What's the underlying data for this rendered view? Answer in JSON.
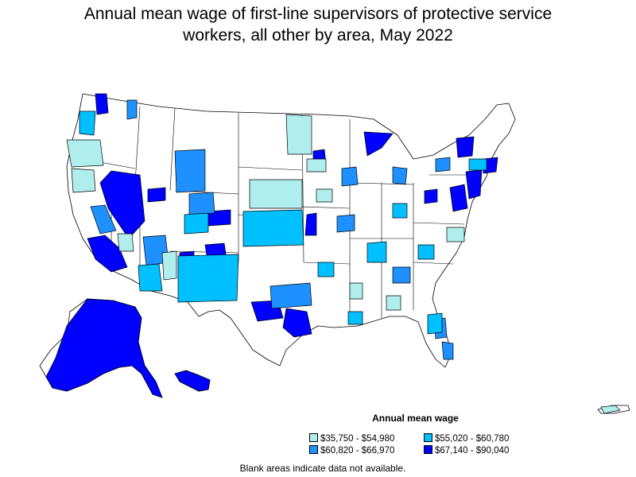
{
  "title": {
    "line1": "Annual mean wage of first-line supervisors of protective service",
    "line2": "workers, all other by area, May 2022"
  },
  "legend": {
    "title": "Annual mean wage",
    "items": [
      {
        "label": "$35,750 - $54,980",
        "color": "#b0eeee"
      },
      {
        "label": "$55,020 - $60,780",
        "color": "#00c0ff"
      },
      {
        "label": "$60,820 - $66,970",
        "color": "#1e90ff"
      },
      {
        "label": "$67,140 - $90,040",
        "color": "#0000ff"
      }
    ]
  },
  "footnote": "Blank areas indicate data not available.",
  "map_colors": {
    "blank": "#ffffff",
    "border": "#000000"
  }
}
